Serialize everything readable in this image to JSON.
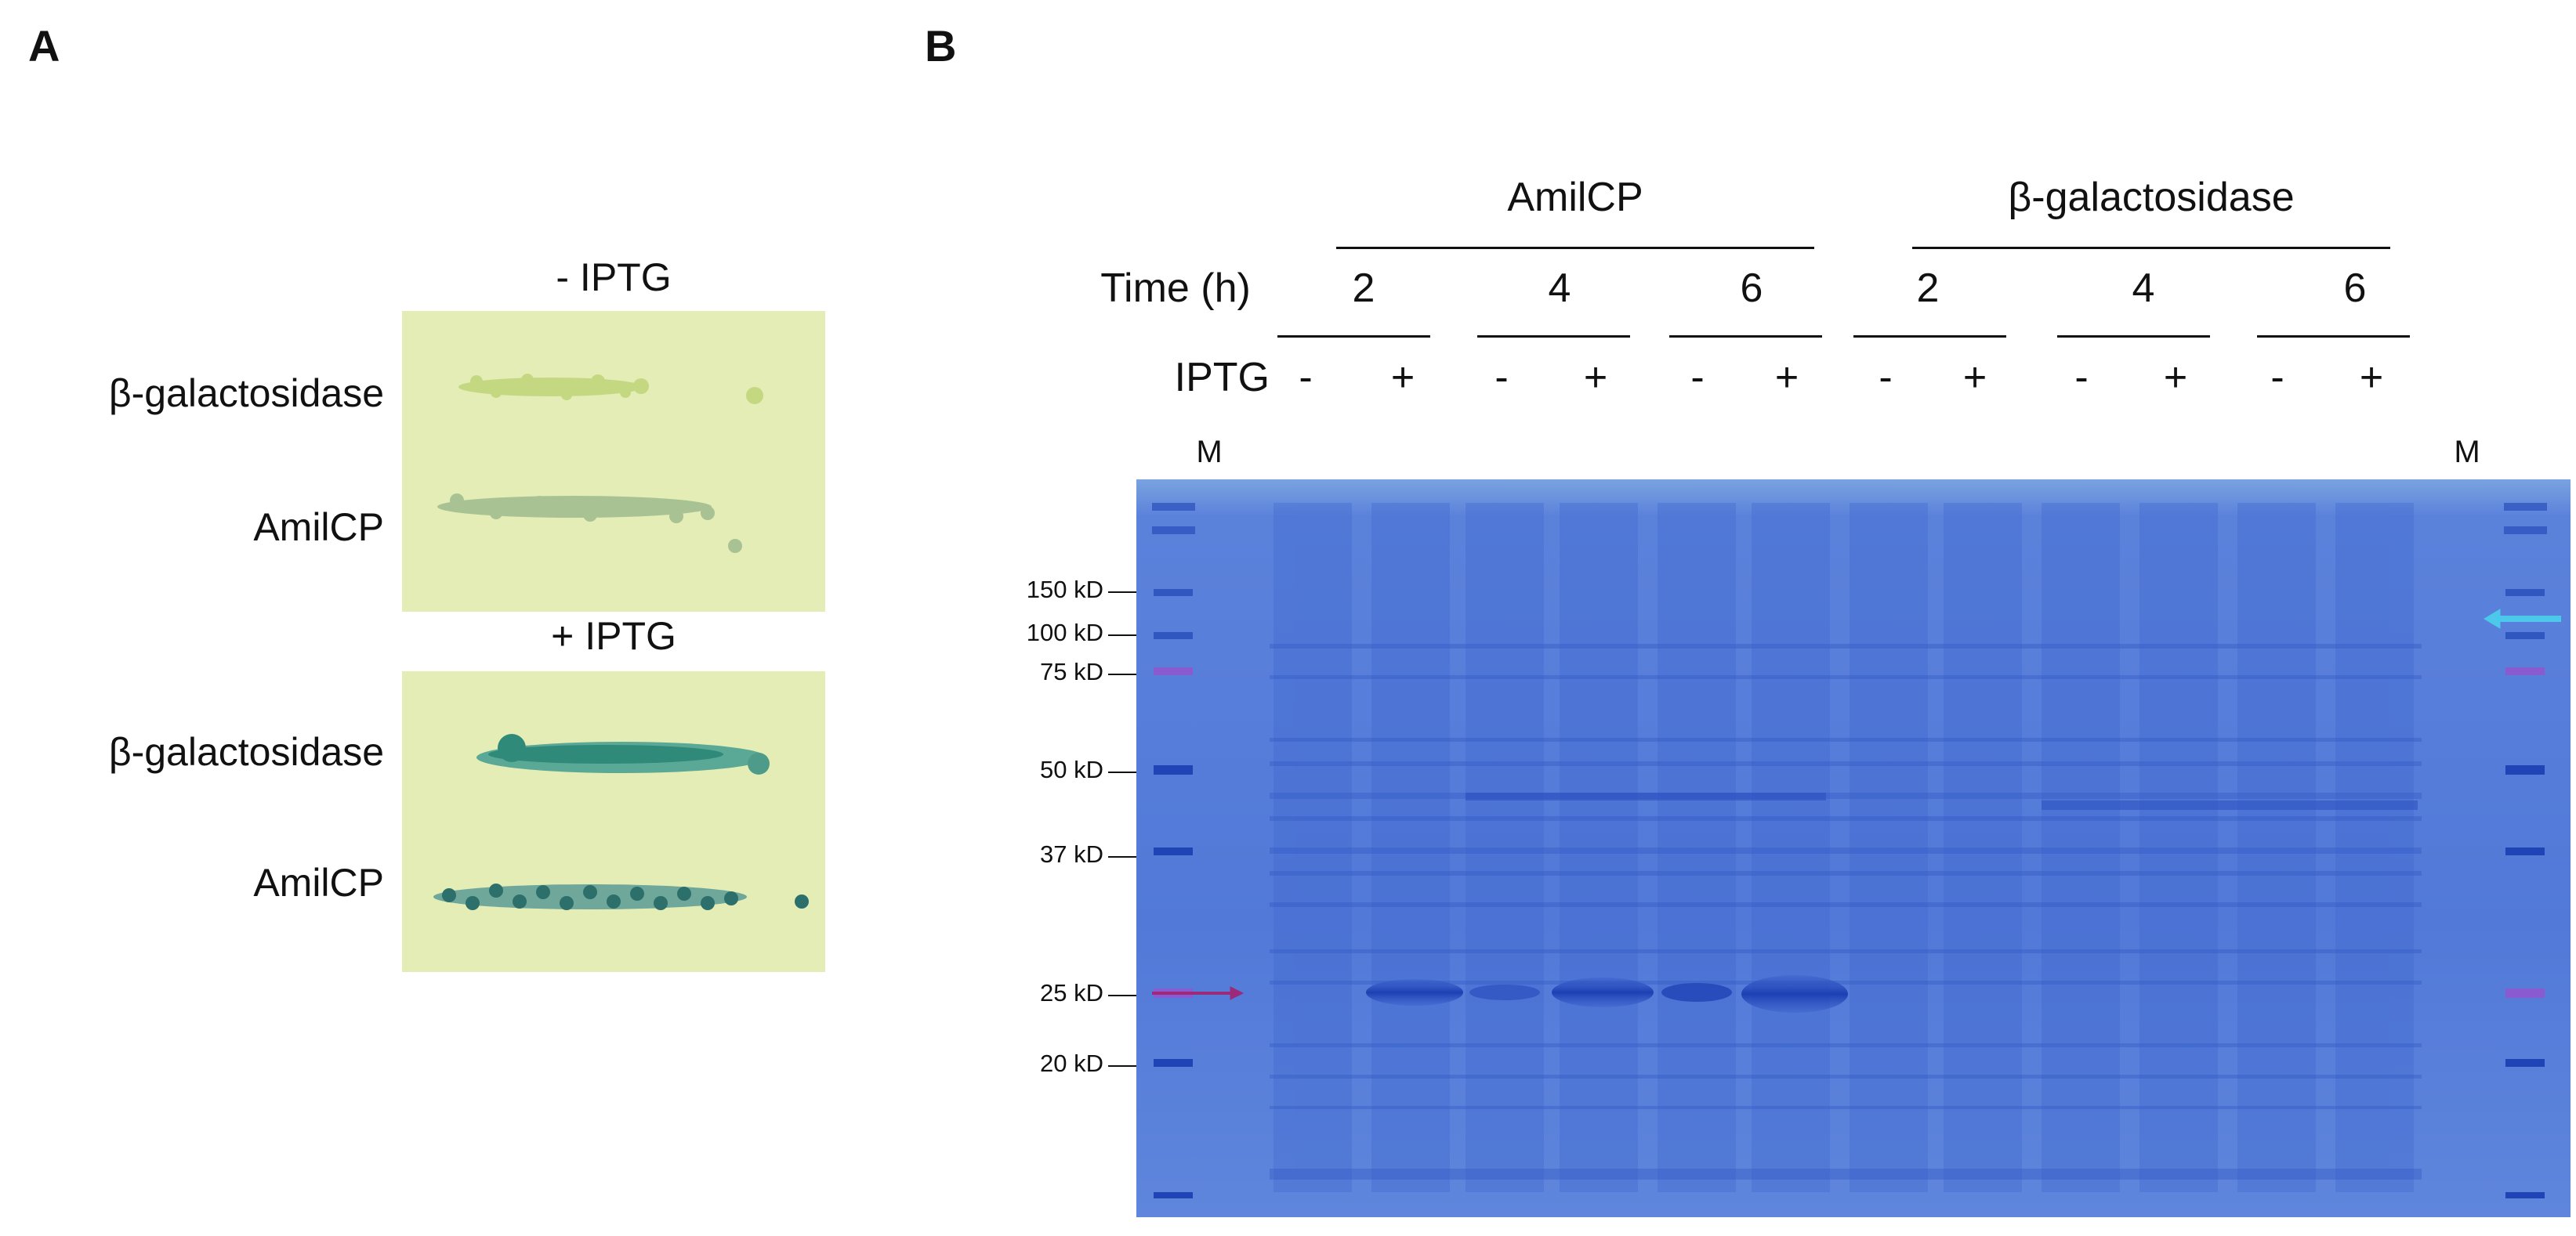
{
  "panel_a": {
    "letter": "A",
    "plate_minus": {
      "title": "- IPTG",
      "rows": [
        "β-galactosidase",
        "AmilCP"
      ]
    },
    "plate_plus": {
      "title": "+ IPTG",
      "rows": [
        "β-galactosidase",
        "AmilCP"
      ]
    }
  },
  "panel_b": {
    "letter": "B",
    "groups": [
      "AmilCP",
      "β-galactosidase"
    ],
    "time_label": "Time (h)",
    "times": [
      "2",
      "4",
      "6",
      "2",
      "4",
      "6"
    ],
    "iptg_label": "IPTG",
    "iptg_signs": [
      "-",
      "+",
      "-",
      "+",
      "-",
      "+",
      "-",
      "+",
      "-",
      "+",
      "-",
      "+"
    ],
    "marker_left": "M",
    "marker_right": "M",
    "mw_labels": [
      "150 kD",
      "100 kD",
      "75 kD",
      "50 kD",
      "37 kD",
      "25 kD",
      "20 kD"
    ]
  },
  "colors": {
    "gel_bg": "#4f76d6",
    "band": "#1c3fb3",
    "plate_bg": "#e4edb5",
    "plate_minus_colony": "#c4d882",
    "plate_plus_colony": "#2f8a7a",
    "arrow_left": "#9b2a7a",
    "arrow_right": "#4cc8ea"
  }
}
